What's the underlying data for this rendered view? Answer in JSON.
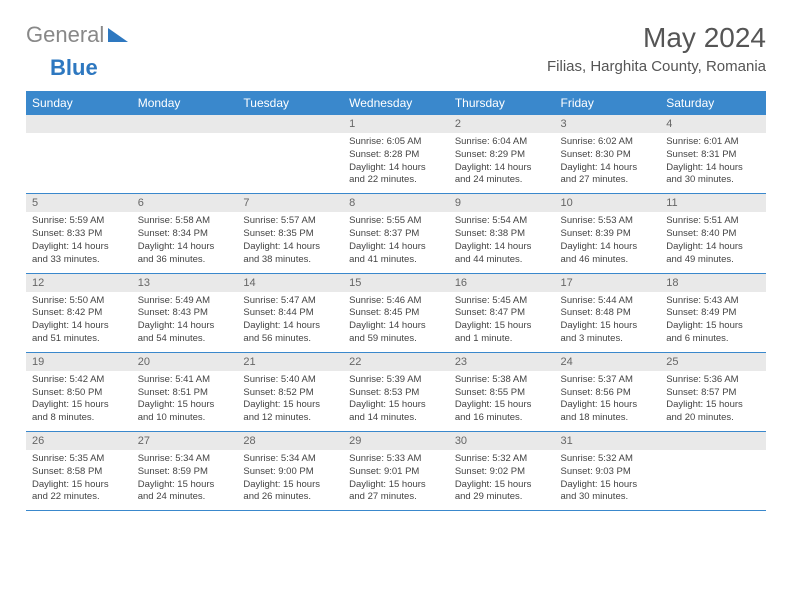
{
  "brand": {
    "text1": "General",
    "text2": "Blue"
  },
  "title": "May 2024",
  "location": "Filias, Harghita County, Romania",
  "day_headers": [
    "Sunday",
    "Monday",
    "Tuesday",
    "Wednesday",
    "Thursday",
    "Friday",
    "Saturday"
  ],
  "colors": {
    "header_bg": "#3a88cc",
    "header_text": "#ffffff",
    "daynum_bg": "#e9e9e9",
    "row_border": "#3a88cc",
    "brand_accent": "#2e78c0",
    "brand_text": "#888888"
  },
  "weeks": [
    [
      null,
      null,
      null,
      {
        "n": "1",
        "sr": "6:05 AM",
        "ss": "8:28 PM",
        "d": "14 hours and 22 minutes."
      },
      {
        "n": "2",
        "sr": "6:04 AM",
        "ss": "8:29 PM",
        "d": "14 hours and 24 minutes."
      },
      {
        "n": "3",
        "sr": "6:02 AM",
        "ss": "8:30 PM",
        "d": "14 hours and 27 minutes."
      },
      {
        "n": "4",
        "sr": "6:01 AM",
        "ss": "8:31 PM",
        "d": "14 hours and 30 minutes."
      }
    ],
    [
      {
        "n": "5",
        "sr": "5:59 AM",
        "ss": "8:33 PM",
        "d": "14 hours and 33 minutes."
      },
      {
        "n": "6",
        "sr": "5:58 AM",
        "ss": "8:34 PM",
        "d": "14 hours and 36 minutes."
      },
      {
        "n": "7",
        "sr": "5:57 AM",
        "ss": "8:35 PM",
        "d": "14 hours and 38 minutes."
      },
      {
        "n": "8",
        "sr": "5:55 AM",
        "ss": "8:37 PM",
        "d": "14 hours and 41 minutes."
      },
      {
        "n": "9",
        "sr": "5:54 AM",
        "ss": "8:38 PM",
        "d": "14 hours and 44 minutes."
      },
      {
        "n": "10",
        "sr": "5:53 AM",
        "ss": "8:39 PM",
        "d": "14 hours and 46 minutes."
      },
      {
        "n": "11",
        "sr": "5:51 AM",
        "ss": "8:40 PM",
        "d": "14 hours and 49 minutes."
      }
    ],
    [
      {
        "n": "12",
        "sr": "5:50 AM",
        "ss": "8:42 PM",
        "d": "14 hours and 51 minutes."
      },
      {
        "n": "13",
        "sr": "5:49 AM",
        "ss": "8:43 PM",
        "d": "14 hours and 54 minutes."
      },
      {
        "n": "14",
        "sr": "5:47 AM",
        "ss": "8:44 PM",
        "d": "14 hours and 56 minutes."
      },
      {
        "n": "15",
        "sr": "5:46 AM",
        "ss": "8:45 PM",
        "d": "14 hours and 59 minutes."
      },
      {
        "n": "16",
        "sr": "5:45 AM",
        "ss": "8:47 PM",
        "d": "15 hours and 1 minute."
      },
      {
        "n": "17",
        "sr": "5:44 AM",
        "ss": "8:48 PM",
        "d": "15 hours and 3 minutes."
      },
      {
        "n": "18",
        "sr": "5:43 AM",
        "ss": "8:49 PM",
        "d": "15 hours and 6 minutes."
      }
    ],
    [
      {
        "n": "19",
        "sr": "5:42 AM",
        "ss": "8:50 PM",
        "d": "15 hours and 8 minutes."
      },
      {
        "n": "20",
        "sr": "5:41 AM",
        "ss": "8:51 PM",
        "d": "15 hours and 10 minutes."
      },
      {
        "n": "21",
        "sr": "5:40 AM",
        "ss": "8:52 PM",
        "d": "15 hours and 12 minutes."
      },
      {
        "n": "22",
        "sr": "5:39 AM",
        "ss": "8:53 PM",
        "d": "15 hours and 14 minutes."
      },
      {
        "n": "23",
        "sr": "5:38 AM",
        "ss": "8:55 PM",
        "d": "15 hours and 16 minutes."
      },
      {
        "n": "24",
        "sr": "5:37 AM",
        "ss": "8:56 PM",
        "d": "15 hours and 18 minutes."
      },
      {
        "n": "25",
        "sr": "5:36 AM",
        "ss": "8:57 PM",
        "d": "15 hours and 20 minutes."
      }
    ],
    [
      {
        "n": "26",
        "sr": "5:35 AM",
        "ss": "8:58 PM",
        "d": "15 hours and 22 minutes."
      },
      {
        "n": "27",
        "sr": "5:34 AM",
        "ss": "8:59 PM",
        "d": "15 hours and 24 minutes."
      },
      {
        "n": "28",
        "sr": "5:34 AM",
        "ss": "9:00 PM",
        "d": "15 hours and 26 minutes."
      },
      {
        "n": "29",
        "sr": "5:33 AM",
        "ss": "9:01 PM",
        "d": "15 hours and 27 minutes."
      },
      {
        "n": "30",
        "sr": "5:32 AM",
        "ss": "9:02 PM",
        "d": "15 hours and 29 minutes."
      },
      {
        "n": "31",
        "sr": "5:32 AM",
        "ss": "9:03 PM",
        "d": "15 hours and 30 minutes."
      },
      null
    ]
  ],
  "labels": {
    "sunrise": "Sunrise: ",
    "sunset": "Sunset: ",
    "daylight": "Daylight: "
  }
}
